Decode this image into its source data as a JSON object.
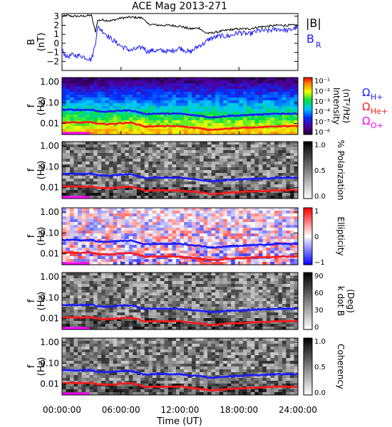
{
  "title": "ACE Mag 2013-271",
  "xlabel": "Time (UT)",
  "x_ticks": [
    "00:00:00",
    "06:00:00",
    "12:00:00",
    "18:00:00",
    "24:00:00"
  ],
  "x_tick_hours": [
    0,
    6,
    12,
    18,
    24
  ],
  "freq_tick_labels": [
    "1.00",
    "0.10",
    "0.01"
  ],
  "freq_tick_values": [
    1.0,
    0.1,
    0.01
  ],
  "colors": {
    "B_total": "#000000",
    "B_R": "#1a1aff",
    "H": "#1a1aff",
    "He": "#ff1a1a",
    "O": "#ff00ff"
  },
  "chart_data": [
    {
      "type": "line",
      "ylabel": "B",
      "yunit": "(nT)",
      "ylim": [
        -3,
        3.3
      ],
      "y_ticks": [
        -2,
        -1,
        0,
        1,
        2,
        3
      ],
      "legend": [
        "|B|",
        "B_R"
      ],
      "legend_total": "|B|",
      "legend_radial_main": "B",
      "legend_radial_sub": "R",
      "x": [
        0,
        0.5,
        1,
        2,
        3,
        3.4,
        3.6,
        4,
        5,
        6,
        7,
        8.3,
        8.6,
        9,
        10,
        11,
        12,
        13,
        14,
        14.5,
        15,
        16,
        17,
        18,
        19,
        20,
        21,
        22,
        23,
        24
      ],
      "series": [
        {
          "name": "|B|",
          "values": [
            3.0,
            3.1,
            3.0,
            3.0,
            3.1,
            1.2,
            2.5,
            2.6,
            2.5,
            2.8,
            2.9,
            2.8,
            2.2,
            2.1,
            2.0,
            2.0,
            1.9,
            1.6,
            1.7,
            1.2,
            1.1,
            1.3,
            1.5,
            1.6,
            1.6,
            1.8,
            1.9,
            2.0,
            2.0,
            2.0
          ]
        },
        {
          "name": "B_R",
          "values": [
            -0.8,
            -1.5,
            -1.3,
            -1.4,
            -1.8,
            0.0,
            1.8,
            1.5,
            0.5,
            -0.3,
            -0.8,
            -0.4,
            -0.9,
            -0.8,
            -0.8,
            -0.9,
            -0.5,
            -1.0,
            -0.2,
            0.0,
            0.5,
            0.8,
            0.8,
            1.2,
            1.0,
            1.4,
            1.4,
            1.6,
            1.4,
            1.8
          ]
        }
      ]
    },
    {
      "type": "heatmap",
      "quantity": "Intensity",
      "ylabel": "f",
      "yunit": "(Hz)",
      "colorbar_title": "Intensity",
      "colorbar_unit": "(nT²/Hz)",
      "colorbar_ticks": [
        "10⁻¹",
        "10⁻²",
        "10⁻³",
        "10⁻⁴",
        "10⁻⁵",
        "10⁻⁶"
      ],
      "legend": [
        "ΩH+",
        "ΩHe+",
        "ΩO+"
      ],
      "legend_omega": "Ω",
      "legend_subs": [
        "H+",
        "He+",
        "O+"
      ]
    },
    {
      "type": "heatmap",
      "quantity": "Polarization",
      "ylabel": "f",
      "yunit": "(Hz)",
      "colorbar_title": "% Polarization",
      "colorbar_ticks": [
        "1.0",
        "0.5",
        "0.0"
      ]
    },
    {
      "type": "heatmap",
      "quantity": "Ellipticity",
      "ylabel": "f",
      "yunit": "(Hz)",
      "colorbar_title": "Ellipticity",
      "colorbar_ticks": [
        "1",
        "0",
        "−1"
      ]
    },
    {
      "type": "heatmap",
      "quantity": "k dot B",
      "ylabel": "f",
      "yunit": "(Hz)",
      "colorbar_title": "k dot B",
      "colorbar_unit": "(Deg)",
      "colorbar_ticks": [
        "90",
        "60",
        "30",
        "0"
      ]
    },
    {
      "type": "heatmap",
      "quantity": "Coherency",
      "ylabel": "f",
      "yunit": "(Hz)",
      "colorbar_title": "Coherency",
      "colorbar_ticks": [
        "1.0",
        "0.5",
        "0.0"
      ]
    }
  ],
  "gyrofrequency_lines": {
    "x": [
      0,
      1,
      2,
      3,
      3.5,
      4,
      5,
      6,
      7,
      8.5,
      9,
      10,
      11,
      12,
      13,
      14,
      15,
      16,
      17,
      18,
      19,
      20,
      21,
      22,
      23,
      24
    ],
    "H": [
      0.045,
      0.046,
      0.045,
      0.047,
      0.04,
      0.038,
      0.038,
      0.042,
      0.043,
      0.028,
      0.03,
      0.03,
      0.03,
      0.03,
      0.026,
      0.024,
      0.02,
      0.021,
      0.024,
      0.024,
      0.026,
      0.027,
      0.028,
      0.03,
      0.03,
      0.03
    ],
    "He": [
      0.011,
      0.0115,
      0.011,
      0.0118,
      0.01,
      0.0095,
      0.0095,
      0.0105,
      0.011,
      0.007,
      0.0075,
      0.0075,
      0.0075,
      0.0075,
      0.0065,
      0.006,
      0.005,
      0.0052,
      0.006,
      0.006,
      0.0065,
      0.0068,
      0.007,
      0.0075,
      0.0075,
      0.0075
    ],
    "O_segment_hours": [
      0,
      2.8
    ]
  }
}
